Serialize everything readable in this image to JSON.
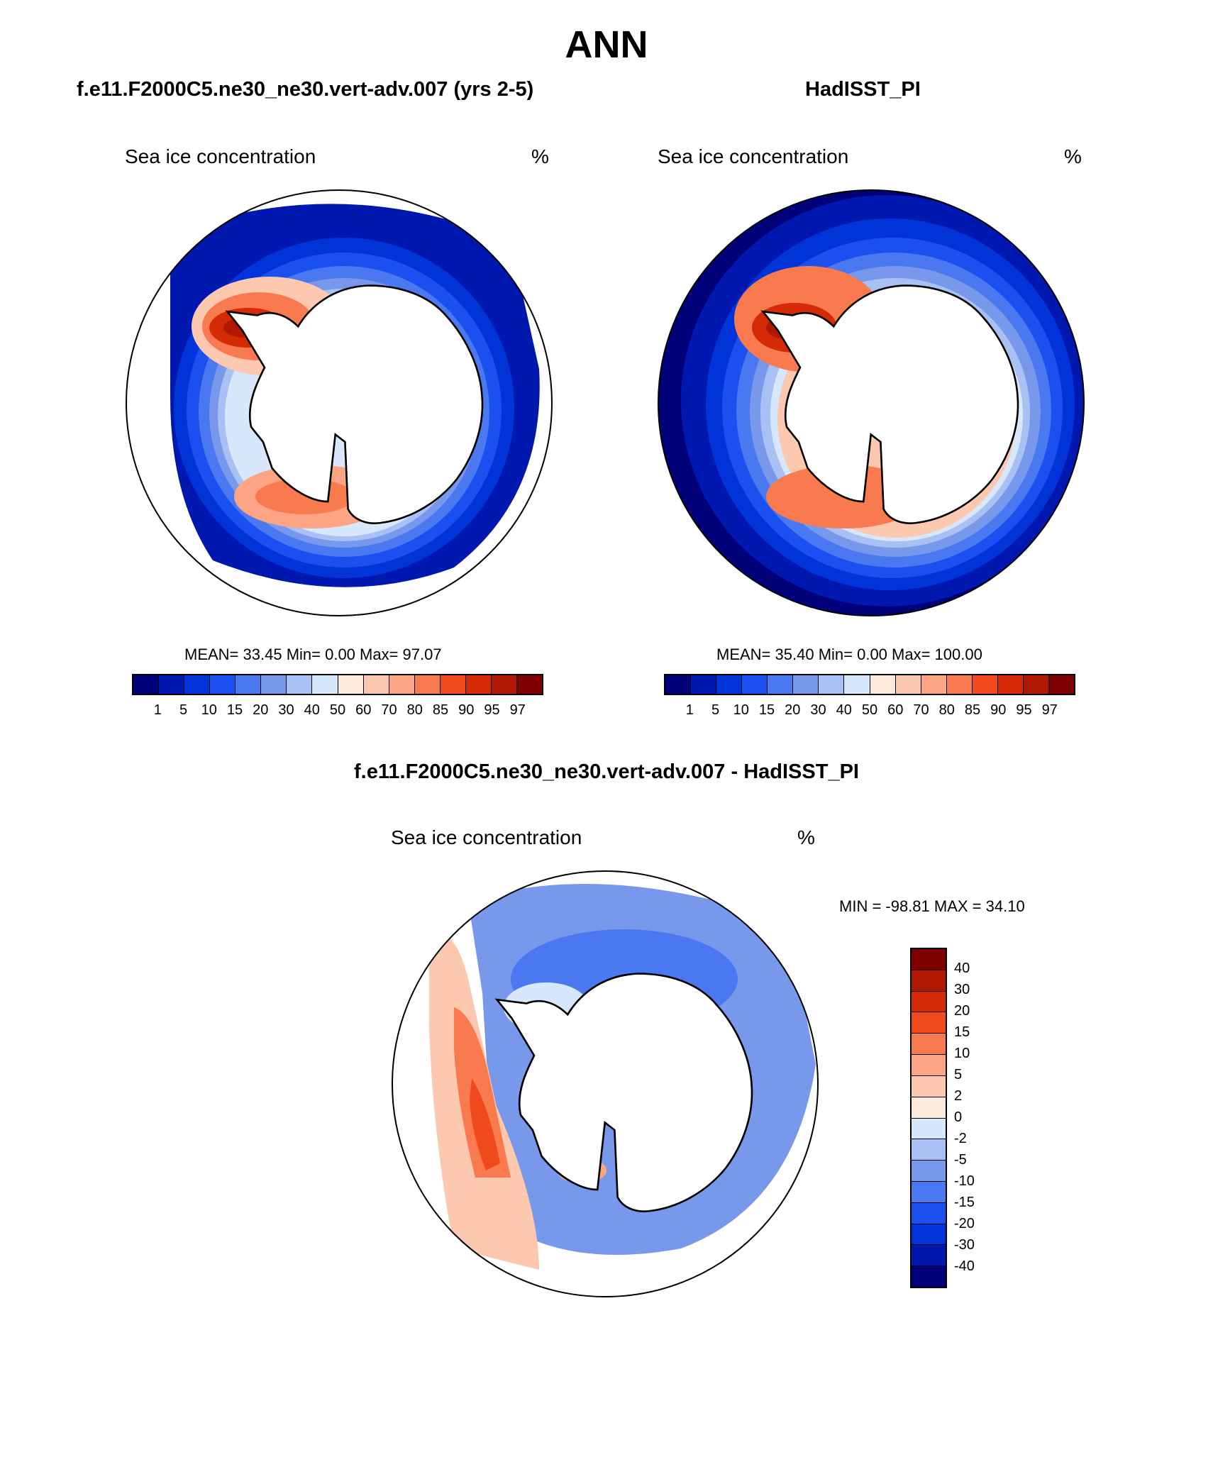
{
  "title": "ANN",
  "panels": {
    "model": {
      "title": "f.e11.F2000C5.ne30_ne30.vert-adv.007 (yrs 2-5)",
      "variable": "Sea ice concentration",
      "units": "%",
      "stats": "MEAN=  33.45  Min=   0.00  Max=  97.07"
    },
    "obs": {
      "title": "HadISST_PI",
      "variable": "Sea ice concentration",
      "units": "%",
      "stats": "MEAN=  35.40  Min=   0.00  Max= 100.00"
    },
    "diff": {
      "title": "f.e11.F2000C5.ne30_ne30.vert-adv.007 - HadISST_PI",
      "variable": "Sea ice concentration",
      "units": "%",
      "stats": "MIN = -98.81 MAX =  34.10"
    }
  },
  "colorbar_levels": [
    "1",
    "5",
    "10",
    "15",
    "20",
    "30",
    "40",
    "50",
    "60",
    "70",
    "80",
    "85",
    "90",
    "95",
    "97"
  ],
  "colorbar_colors": [
    "#00007a",
    "#0018b0",
    "#0034d8",
    "#1a50f0",
    "#4a78f0",
    "#7898ec",
    "#a8c0f4",
    "#d8e8fc",
    "#fdeadc",
    "#fcc8b0",
    "#fca484",
    "#fa7a50",
    "#f04a1c",
    "#d42a06",
    "#b01804",
    "#800000"
  ],
  "diff_levels": [
    "40",
    "30",
    "20",
    "15",
    "10",
    "5",
    "2",
    "0",
    "-2",
    "-5",
    "-10",
    "-15",
    "-20",
    "-30",
    "-40"
  ],
  "diff_colors": [
    "#800000",
    "#b01804",
    "#d42a06",
    "#f04a1c",
    "#fa7a50",
    "#fca484",
    "#fcc8b0",
    "#fdeadc",
    "#d8e8fc",
    "#a8c0f4",
    "#7898ec",
    "#4a78f0",
    "#1a50f0",
    "#0034d8",
    "#0018b0",
    "#00007a"
  ]
}
